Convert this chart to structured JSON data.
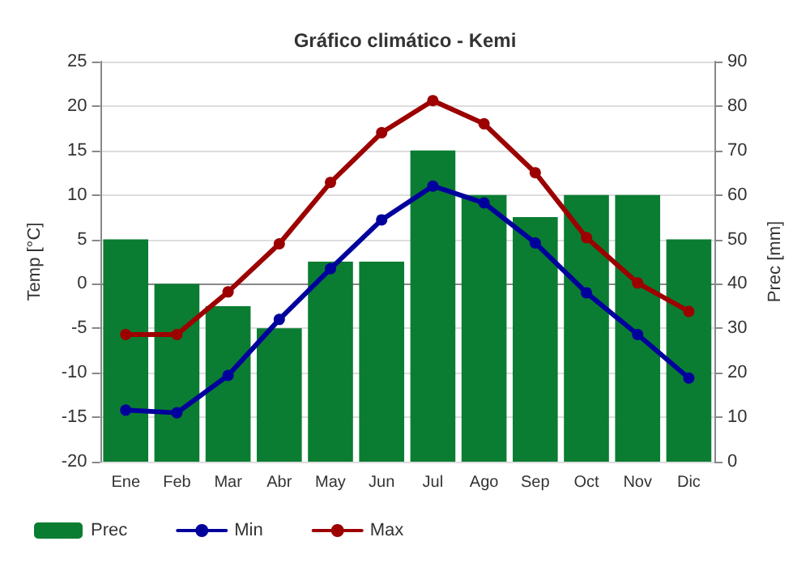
{
  "chart_data": {
    "type": "bar",
    "title": "Gráfico climático - Kemi",
    "categories": [
      "Ene",
      "Feb",
      "Mar",
      "Abr",
      "May",
      "Jun",
      "Jul",
      "Ago",
      "Sep",
      "Oct",
      "Nov",
      "Dic"
    ],
    "ylabel": "Temp [°C]",
    "y2label": "Prec [mm]",
    "series": [
      {
        "name": "Prec",
        "axis": "y2",
        "color": "#0a7d32",
        "values": [
          50,
          40,
          35,
          30,
          45,
          45,
          70,
          60,
          55,
          60,
          60,
          50
        ]
      },
      {
        "name": "Min",
        "type": "line",
        "color": "#00009c",
        "values": [
          -14.2,
          -14.5,
          -10.3,
          -4,
          1.7,
          7.2,
          11,
          9.1,
          4.6,
          -1,
          -5.7,
          -10.6
        ]
      },
      {
        "name": "Max",
        "type": "line",
        "color": "#9c0000",
        "values": [
          -5.7,
          -5.7,
          -0.9,
          4.5,
          11.4,
          17,
          20.6,
          18,
          12.5,
          5.2,
          0.1,
          -3.1
        ]
      }
    ],
    "ylim": [
      -20,
      25
    ],
    "yticks": [
      -20,
      -15,
      -10,
      -5,
      0,
      5,
      10,
      15,
      20,
      25
    ],
    "y2lim": [
      0,
      90
    ],
    "y2ticks": [
      0,
      10,
      20,
      30,
      40,
      50,
      60,
      70,
      80,
      90
    ],
    "grid": "y",
    "legend": "bottom left",
    "marker": "circle",
    "line_style": "solid"
  }
}
